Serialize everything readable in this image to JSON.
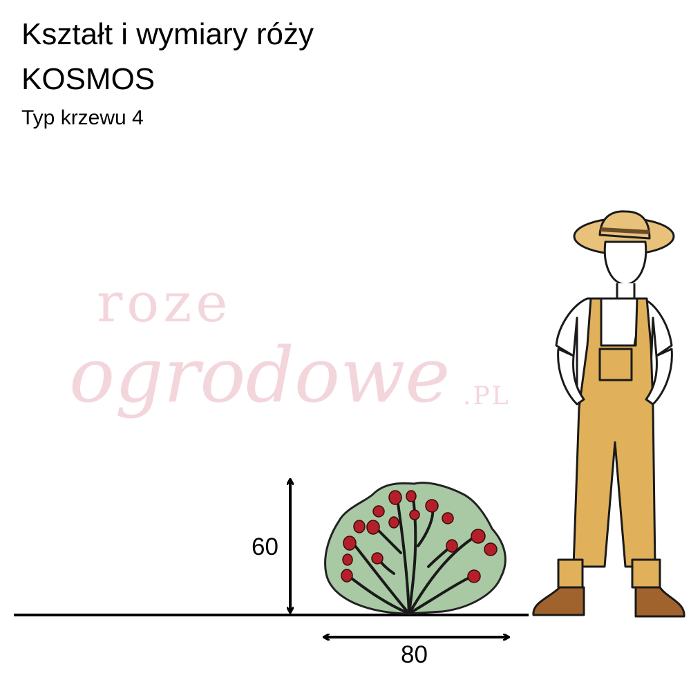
{
  "header": {
    "title_line1": "Kształt i wymiary róży",
    "title_line2": "KOSMOS",
    "subtitle": "Typ krzewu 4"
  },
  "watermark": {
    "line1": "roze",
    "line2": "ogrodowe",
    "suffix": ".PL"
  },
  "dimensions": {
    "height": "60",
    "width": "80"
  },
  "colors": {
    "bush_leaf": "#a9c9a4",
    "flower": "#b3202a",
    "overalls": "#e0b15a",
    "hat": "#e8c27a",
    "watermark": "#f3d6dc"
  }
}
